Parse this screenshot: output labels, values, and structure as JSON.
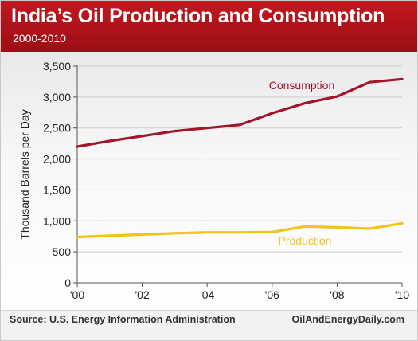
{
  "header": {
    "title": "India’s Oil Production and Consumption",
    "subtitle": "2000-2010"
  },
  "footer": {
    "source": "Source: U.S. Energy Information Administration",
    "site": "OilAndEnergyDaily.com"
  },
  "colors": {
    "header": "#b3121a",
    "consumption": "#a3152a",
    "production": "#f0c419"
  },
  "chart_data": {
    "type": "line",
    "title": "India’s Oil Production and Consumption",
    "subtitle": "2000-2010",
    "xlabel": "",
    "ylabel": "Thousand Barrels per Day",
    "xlim": [
      2000,
      2010
    ],
    "ylim": [
      0,
      3500
    ],
    "x_ticks": [
      {
        "value": 2000,
        "label": "'00"
      },
      {
        "value": 2002,
        "label": "'02"
      },
      {
        "value": 2004,
        "label": "'04"
      },
      {
        "value": 2006,
        "label": "'06"
      },
      {
        "value": 2008,
        "label": "'08"
      },
      {
        "value": 2010,
        "label": "'10"
      }
    ],
    "y_ticks": [
      {
        "value": 0,
        "label": "0"
      },
      {
        "value": 500,
        "label": "500"
      },
      {
        "value": 1000,
        "label": "1,000"
      },
      {
        "value": 1500,
        "label": "1,500"
      },
      {
        "value": 2000,
        "label": "2,000"
      },
      {
        "value": 2500,
        "label": "2,500"
      },
      {
        "value": 3000,
        "label": "3,000"
      },
      {
        "value": 3500,
        "label": "3,500"
      }
    ],
    "grid": "horizontal",
    "series": [
      {
        "name": "Consumption",
        "color": "#a3152a",
        "points": [
          {
            "x": 2000,
            "y": 2200
          },
          {
            "x": 2001,
            "y": 2290
          },
          {
            "x": 2002,
            "y": 2370
          },
          {
            "x": 2003,
            "y": 2450
          },
          {
            "x": 2004,
            "y": 2500
          },
          {
            "x": 2005,
            "y": 2550
          },
          {
            "x": 2006,
            "y": 2740
          },
          {
            "x": 2007,
            "y": 2900
          },
          {
            "x": 2008,
            "y": 3010
          },
          {
            "x": 2009,
            "y": 3240
          },
          {
            "x": 2010,
            "y": 3290
          }
        ]
      },
      {
        "name": "Production",
        "color": "#f0c419",
        "points": [
          {
            "x": 2000,
            "y": 740
          },
          {
            "x": 2001,
            "y": 760
          },
          {
            "x": 2002,
            "y": 780
          },
          {
            "x": 2003,
            "y": 800
          },
          {
            "x": 2004,
            "y": 815
          },
          {
            "x": 2005,
            "y": 815
          },
          {
            "x": 2006,
            "y": 820
          },
          {
            "x": 2007,
            "y": 910
          },
          {
            "x": 2008,
            "y": 895
          },
          {
            "x": 2009,
            "y": 875
          },
          {
            "x": 2010,
            "y": 960
          }
        ]
      }
    ]
  }
}
